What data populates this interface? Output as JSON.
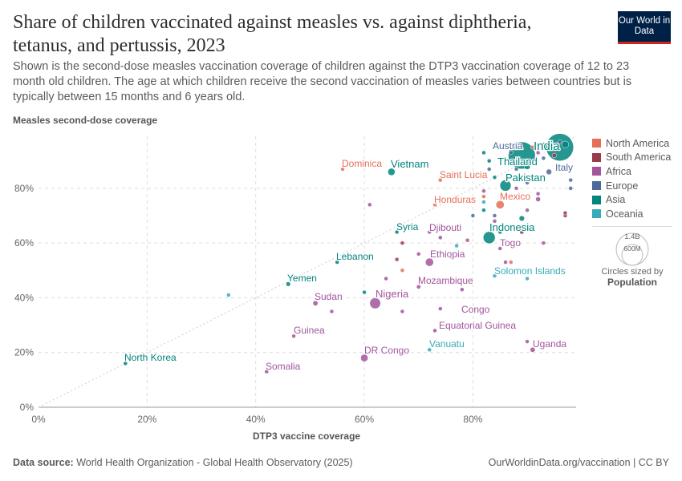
{
  "header": {
    "title": "Share of children vaccinated against measles vs. against diphtheria, tetanus, and pertussis, 2023",
    "subtitle": "Shown is the second-dose measles vaccination coverage of children against the DTP3 vaccination coverage of 12 to 23 month old children. The age at which children receive the second vaccination of measles varies between countries but is typically between 15 months and 6 years old.",
    "logo": "Our World in Data"
  },
  "footer": {
    "source_label": "Data source:",
    "source": "World Health Organization - Global Health Observatory (2025)",
    "url": "OurWorldinData.org/vaccination | CC BY"
  },
  "size_legend": {
    "big": "1.4B",
    "small": "600M",
    "caption": "Circles sized by",
    "variable": "Population"
  },
  "chart_data": {
    "type": "scatter",
    "xlabel": "DTP3 vaccine coverage",
    "ylabel": "Measles second-dose coverage",
    "xlim": [
      0,
      99
    ],
    "ylim": [
      0,
      99
    ],
    "xticks": [
      "0%",
      "20%",
      "40%",
      "60%",
      "80%"
    ],
    "yticks": [
      "0%",
      "20%",
      "40%",
      "60%",
      "80%"
    ],
    "grid": true,
    "legend_position": "right",
    "colors": {
      "North America": "#e56e5a",
      "South America": "#9a3b4d",
      "Africa": "#a2559c",
      "Europe": "#4c6a9c",
      "Asia": "#00847e",
      "Oceania": "#38aaba"
    },
    "legend": [
      "North America",
      "South America",
      "Africa",
      "Europe",
      "Asia",
      "Oceania"
    ],
    "points": [
      {
        "name": "India",
        "region": "Asia",
        "x": 96,
        "y": 95,
        "pop": 1440,
        "label": true
      },
      {
        "name": "",
        "region": "Asia",
        "x": 89,
        "y": 92,
        "pop": 1410,
        "label": false
      },
      {
        "name": "Thailand",
        "region": "Asia",
        "x": 90,
        "y": 88,
        "pop": 72,
        "label": true
      },
      {
        "name": "Austria",
        "region": "Europe",
        "x": 87,
        "y": 93,
        "pop": 9,
        "label": true
      },
      {
        "name": "Italy",
        "region": "Europe",
        "x": 94,
        "y": 86,
        "pop": 59,
        "label": true
      },
      {
        "name": "Pakistan",
        "region": "Asia",
        "x": 86,
        "y": 81,
        "pop": 240,
        "label": true
      },
      {
        "name": "Mexico",
        "region": "North America",
        "x": 85,
        "y": 74,
        "pop": 129,
        "label": true
      },
      {
        "name": "Indonesia",
        "region": "Asia",
        "x": 83,
        "y": 62,
        "pop": 280,
        "label": true
      },
      {
        "name": "Togo",
        "region": "Africa",
        "x": 85,
        "y": 58,
        "pop": 9,
        "label": true
      },
      {
        "name": "Solomon Islands",
        "region": "Oceania",
        "x": 84,
        "y": 48,
        "pop": 1,
        "label": true
      },
      {
        "name": "Uganda",
        "region": "Africa",
        "x": 91,
        "y": 21,
        "pop": 49,
        "label": true
      },
      {
        "name": "Vanuatu",
        "region": "Oceania",
        "x": 72,
        "y": 21,
        "pop": 1,
        "label": true
      },
      {
        "name": "DR Congo",
        "region": "Africa",
        "x": 60,
        "y": 18,
        "pop": 105,
        "label": true
      },
      {
        "name": "Equatorial Guinea",
        "region": "Africa",
        "x": 73,
        "y": 28,
        "pop": 2,
        "label": true
      },
      {
        "name": "Congo",
        "region": "Africa",
        "x": 74,
        "y": 36,
        "pop": 6,
        "label": true
      },
      {
        "name": "Nigeria",
        "region": "Africa",
        "x": 62,
        "y": 38,
        "pop": 228,
        "label": true
      },
      {
        "name": "Mozambique",
        "region": "Africa",
        "x": 70,
        "y": 44,
        "pop": 34,
        "label": true
      },
      {
        "name": "Ethiopia",
        "region": "Africa",
        "x": 72,
        "y": 53,
        "pop": 127,
        "label": true
      },
      {
        "name": "Djibouti",
        "region": "Africa",
        "x": 72,
        "y": 64,
        "pop": 1,
        "label": true
      },
      {
        "name": "Honduras",
        "region": "North America",
        "x": 73,
        "y": 74,
        "pop": 10,
        "label": true
      },
      {
        "name": "Saint Lucia",
        "region": "North America",
        "x": 74,
        "y": 83,
        "pop": 1,
        "label": true
      },
      {
        "name": "Vietnam",
        "region": "Asia",
        "x": 65,
        "y": 86,
        "pop": 100,
        "label": true
      },
      {
        "name": "Dominica",
        "region": "North America",
        "x": 56,
        "y": 87,
        "pop": 1,
        "label": true
      },
      {
        "name": "Syria",
        "region": "Asia",
        "x": 66,
        "y": 64,
        "pop": 23,
        "label": true
      },
      {
        "name": "Lebanon",
        "region": "Asia",
        "x": 55,
        "y": 53,
        "pop": 5,
        "label": true
      },
      {
        "name": "Yemen",
        "region": "Asia",
        "x": 46,
        "y": 45,
        "pop": 39,
        "label": true
      },
      {
        "name": "Sudan",
        "region": "Africa",
        "x": 51,
        "y": 38,
        "pop": 50,
        "label": true
      },
      {
        "name": "Guinea",
        "region": "Africa",
        "x": 47,
        "y": 26,
        "pop": 14,
        "label": true
      },
      {
        "name": "Somalia",
        "region": "Africa",
        "x": 42,
        "y": 13,
        "pop": 18,
        "label": true
      },
      {
        "name": "North Korea",
        "region": "Asia",
        "x": 16,
        "y": 16,
        "pop": 26,
        "label": true
      },
      {
        "name": "",
        "region": "Oceania",
        "x": 35,
        "y": 41,
        "pop": 1,
        "label": false
      },
      {
        "name": "",
        "region": "Africa",
        "x": 54,
        "y": 35,
        "pop": 30,
        "label": false
      },
      {
        "name": "",
        "region": "Asia",
        "x": 60,
        "y": 42,
        "pop": 20,
        "label": false
      },
      {
        "name": "",
        "region": "Africa",
        "x": 64,
        "y": 47,
        "pop": 5,
        "label": false
      },
      {
        "name": "",
        "region": "South America",
        "x": 66,
        "y": 54,
        "pop": 20,
        "label": false
      },
      {
        "name": "",
        "region": "South America",
        "x": 67,
        "y": 60,
        "pop": 3,
        "label": false
      },
      {
        "name": "",
        "region": "North America",
        "x": 67,
        "y": 50,
        "pop": 3,
        "label": false
      },
      {
        "name": "",
        "region": "Africa",
        "x": 67,
        "y": 35,
        "pop": 3,
        "label": false
      },
      {
        "name": "",
        "region": "Africa",
        "x": 74,
        "y": 62,
        "pop": 5,
        "label": false
      },
      {
        "name": "",
        "region": "Oceania",
        "x": 77,
        "y": 59,
        "pop": 1,
        "label": false
      },
      {
        "name": "",
        "region": "Africa",
        "x": 78,
        "y": 43,
        "pop": 8,
        "label": false
      },
      {
        "name": "",
        "region": "South America",
        "x": 89,
        "y": 64,
        "pop": 33,
        "label": false
      },
      {
        "name": "",
        "region": "Asia",
        "x": 89,
        "y": 69,
        "pop": 55,
        "label": false
      },
      {
        "name": "",
        "region": "Africa",
        "x": 90,
        "y": 72,
        "pop": 10,
        "label": false
      },
      {
        "name": "",
        "region": "Africa",
        "x": 92,
        "y": 76,
        "pop": 45,
        "label": false
      },
      {
        "name": "",
        "region": "Africa",
        "x": 92,
        "y": 78,
        "pop": 30,
        "label": false
      },
      {
        "name": "",
        "region": "Africa",
        "x": 86,
        "y": 53,
        "pop": 5,
        "label": false
      },
      {
        "name": "",
        "region": "Oceania",
        "x": 90,
        "y": 47,
        "pop": 1,
        "label": false
      },
      {
        "name": "",
        "region": "Africa",
        "x": 90,
        "y": 24,
        "pop": 3,
        "label": false
      },
      {
        "name": "",
        "region": "Europe",
        "x": 84,
        "y": 70,
        "pop": 2,
        "label": false
      },
      {
        "name": "",
        "region": "South America",
        "x": 97,
        "y": 70,
        "pop": 5,
        "label": false
      },
      {
        "name": "",
        "region": "South America",
        "x": 97,
        "y": 71,
        "pop": 3,
        "label": false
      },
      {
        "name": "",
        "region": "Europe",
        "x": 98,
        "y": 80,
        "pop": 5,
        "label": false
      },
      {
        "name": "",
        "region": "Europe",
        "x": 98,
        "y": 83,
        "pop": 5,
        "label": false
      },
      {
        "name": "",
        "region": "Europe",
        "x": 96,
        "y": 87,
        "pop": 10,
        "label": false
      },
      {
        "name": "",
        "region": "Europe",
        "x": 93,
        "y": 91,
        "pop": 30,
        "label": false
      },
      {
        "name": "",
        "region": "Africa",
        "x": 92,
        "y": 93,
        "pop": 10,
        "label": false
      },
      {
        "name": "",
        "region": "South America",
        "x": 95,
        "y": 92,
        "pop": 40,
        "label": false
      },
      {
        "name": "",
        "region": "Asia",
        "x": 97,
        "y": 96,
        "pop": 90,
        "label": false
      },
      {
        "name": "",
        "region": "Europe",
        "x": 96,
        "y": 97,
        "pop": 20,
        "label": false
      },
      {
        "name": "",
        "region": "Asia",
        "x": 93,
        "y": 96,
        "pop": 5,
        "label": false
      },
      {
        "name": "",
        "region": "North America",
        "x": 91,
        "y": 95,
        "pop": 5,
        "label": false
      },
      {
        "name": "",
        "region": "Europe",
        "x": 88,
        "y": 87,
        "pop": 4,
        "label": false
      },
      {
        "name": "",
        "region": "Europe",
        "x": 83,
        "y": 87,
        "pop": 10,
        "label": false
      },
      {
        "name": "",
        "region": "Asia",
        "x": 83,
        "y": 90,
        "pop": 3,
        "label": false
      },
      {
        "name": "",
        "region": "Asia",
        "x": 82,
        "y": 93,
        "pop": 3,
        "label": false
      },
      {
        "name": "",
        "region": "Asia",
        "x": 84,
        "y": 84,
        "pop": 3,
        "label": false
      },
      {
        "name": "",
        "region": "Africa",
        "x": 82,
        "y": 79,
        "pop": 3,
        "label": false
      },
      {
        "name": "",
        "region": "North America",
        "x": 82,
        "y": 77,
        "pop": 1,
        "label": false
      },
      {
        "name": "",
        "region": "Oceania",
        "x": 82,
        "y": 75,
        "pop": 1,
        "label": false
      },
      {
        "name": "",
        "region": "Europe",
        "x": 80,
        "y": 70,
        "pop": 2,
        "label": false
      },
      {
        "name": "",
        "region": "Africa",
        "x": 84,
        "y": 68,
        "pop": 3,
        "label": false
      },
      {
        "name": "",
        "region": "Asia",
        "x": 82,
        "y": 72,
        "pop": 3,
        "label": false
      },
      {
        "name": "",
        "region": "Africa",
        "x": 79,
        "y": 61,
        "pop": 3,
        "label": false
      },
      {
        "name": "",
        "region": "Africa",
        "x": 88,
        "y": 80,
        "pop": 3,
        "label": false
      },
      {
        "name": "",
        "region": "North America",
        "x": 87,
        "y": 53,
        "pop": 3,
        "label": false
      },
      {
        "name": "",
        "region": "Africa",
        "x": 93,
        "y": 60,
        "pop": 3,
        "label": false
      },
      {
        "name": "",
        "region": "Europe",
        "x": 90,
        "y": 82,
        "pop": 3,
        "label": false
      },
      {
        "name": "",
        "region": "Africa",
        "x": 70,
        "y": 56,
        "pop": 3,
        "label": false
      },
      {
        "name": "",
        "region": "Africa",
        "x": 76,
        "y": 55,
        "pop": 3,
        "label": false
      },
      {
        "name": "",
        "region": "Asia",
        "x": 85,
        "y": 64,
        "pop": 3,
        "label": false
      },
      {
        "name": "",
        "region": "Africa",
        "x": 61,
        "y": 74,
        "pop": 1,
        "label": false
      }
    ]
  }
}
